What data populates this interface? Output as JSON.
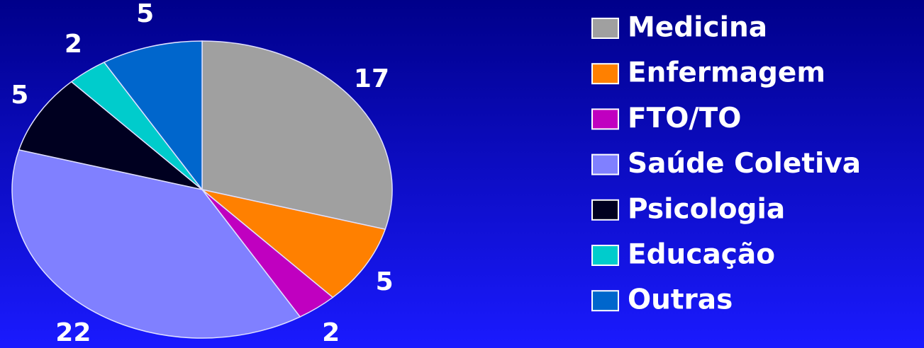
{
  "chart_data": {
    "type": "pie",
    "categories": [
      "Medicina",
      "Enfermagem",
      "FTO/TO",
      "Saúde Coletiva",
      "Psicologia",
      "Educação",
      "Outras"
    ],
    "values": [
      17,
      5,
      2,
      22,
      5,
      2,
      5
    ],
    "colors": [
      "#a0a0a0",
      "#ff8000",
      "#c000c0",
      "#8080ff",
      "#000020",
      "#00cccc",
      "#0066cc"
    ],
    "legend": "right"
  }
}
